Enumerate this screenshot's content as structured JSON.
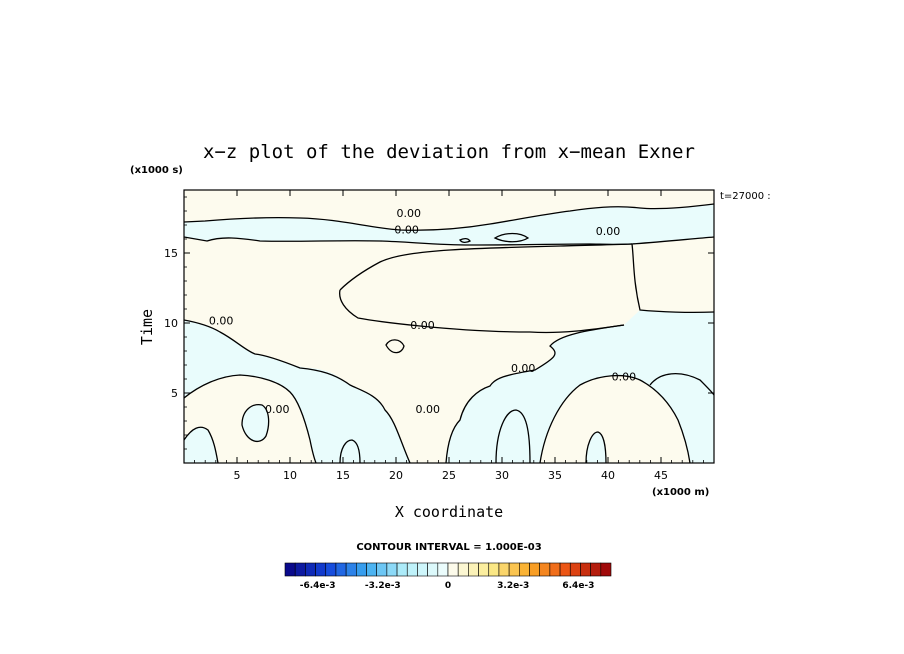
{
  "chart_data": {
    "type": "contour",
    "title": "x−z plot of the deviation from x−mean Exner",
    "xlabel": "X coordinate",
    "ylabel": "Time",
    "x_units": "(x1000 m)",
    "y_units": "(x1000 s)",
    "time_label": "t=27000 :",
    "xlim": [
      0,
      50
    ],
    "ylim": [
      0,
      19.5
    ],
    "x_ticks": [
      "5",
      "10",
      "15",
      "20",
      "25",
      "30",
      "35",
      "40",
      "45"
    ],
    "y_ticks": [
      "5",
      "10",
      "15"
    ],
    "contour_interval_label": "CONTOUR INTERVAL = 1.000E-03",
    "contour_labels": [
      {
        "text": "0.00",
        "x": 21.2,
        "y": 17.8
      },
      {
        "text": "0.00",
        "x": 21.0,
        "y": 16.6
      },
      {
        "text": "0.00",
        "x": 40.0,
        "y": 16.5
      },
      {
        "text": "0.00",
        "x": 3.5,
        "y": 10.1
      },
      {
        "text": "0.00",
        "x": 22.5,
        "y": 9.8
      },
      {
        "text": "0.00",
        "x": 32.0,
        "y": 6.7
      },
      {
        "text": "0.00",
        "x": 41.5,
        "y": 6.1
      },
      {
        "text": "0.00",
        "x": 8.8,
        "y": 3.8
      },
      {
        "text": "0.00",
        "x": 23.0,
        "y": 3.8
      }
    ],
    "colorbar": {
      "ticks": [
        "-6.4e-3",
        "-3.2e-3",
        "0",
        "3.2e-3",
        "6.4e-3"
      ],
      "tick_values": [
        -0.0064,
        -0.0032,
        0,
        0.0032,
        0.0064
      ],
      "range": [
        -0.008,
        0.008
      ],
      "levels": 32
    },
    "colors": {
      "negative_fill": "#e9fcfc",
      "positive_fill": "#fdfbee",
      "contour_line": "#000000"
    }
  }
}
